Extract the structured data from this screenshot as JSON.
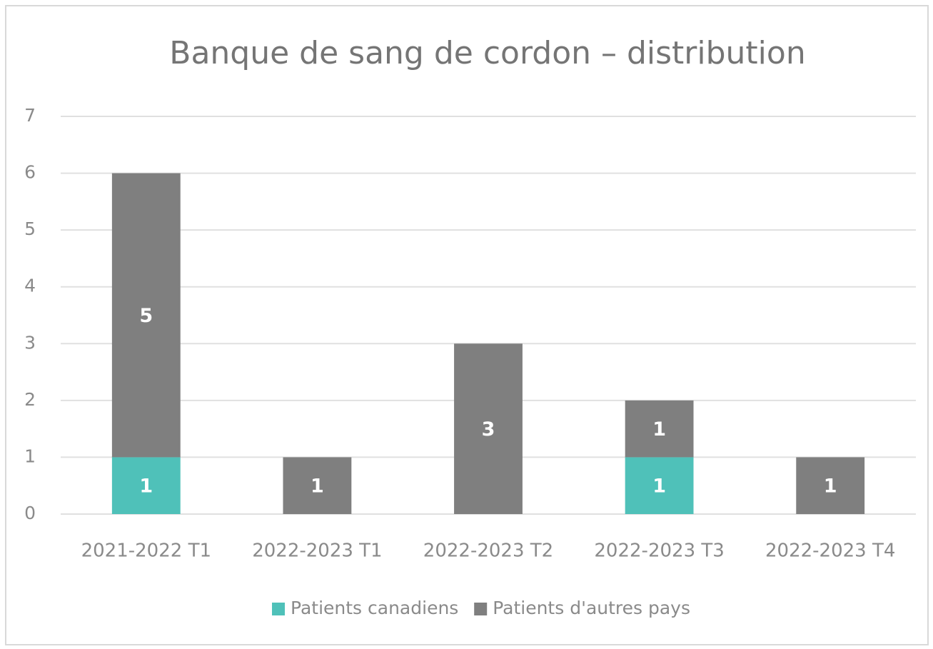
{
  "chart_data": {
    "type": "stacked_bar",
    "title": "Banque de sang de cordon – distribution",
    "categories": [
      "2021-2022 T1",
      "2022-2023 T1",
      "2022-2023 T2",
      "2022-2023 T3",
      "2022-2023 T4"
    ],
    "series": [
      {
        "name": "Patients canadiens",
        "color": "#4fc1b9",
        "values": [
          1,
          null,
          null,
          1,
          null
        ]
      },
      {
        "name": "Patients d'autres pays",
        "color": "#7f7f7f",
        "values": [
          5,
          1,
          3,
          1,
          1
        ]
      }
    ],
    "ylim": [
      0,
      7
    ],
    "yticks": [
      0,
      1,
      2,
      3,
      4,
      5,
      6,
      7
    ],
    "grid": true,
    "legend": "bottom"
  }
}
